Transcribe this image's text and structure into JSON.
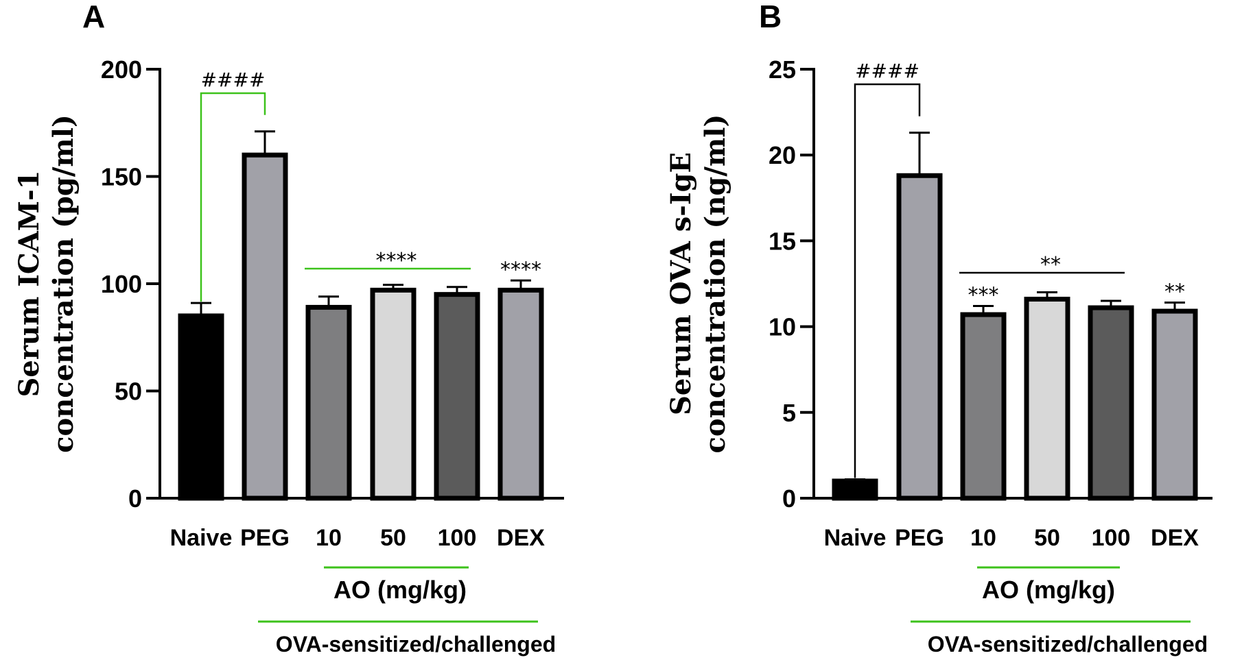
{
  "chart_data": [
    {
      "type": "bar",
      "panel": "A",
      "ylabel_line1": "Serum ICAM-1",
      "ylabel_line2": "concentration (pg/ml)",
      "categories": [
        "Naive",
        "PEG",
        "10",
        "50",
        "100",
        "DEX"
      ],
      "values": [
        85,
        160,
        89,
        97,
        95,
        97
      ],
      "errors": [
        6,
        11,
        5,
        2.5,
        3.5,
        4.5
      ],
      "colors": [
        "#000000",
        "#a1a1a8",
        "#7e7e80",
        "#d8d8d8",
        "#5b5b5b",
        "#a1a1a8"
      ],
      "ylim": [
        0,
        200
      ],
      "yticks": [
        "0",
        "50",
        "100",
        "150",
        "200"
      ],
      "bracket_label": "####",
      "group_sig_label": "****",
      "bar_sig_labels": [
        "",
        "",
        "",
        "",
        "",
        "****"
      ],
      "group_label_ao": "AO (mg/kg)",
      "group_label_ova": "OVA-sensitized/challenged"
    },
    {
      "type": "bar",
      "panel": "B",
      "ylabel_line1": "Serum OVA s-IgE",
      "ylabel_line2": "concentration (ng/ml)",
      "categories": [
        "Naive",
        "PEG",
        "10",
        "50",
        "100",
        "DEX"
      ],
      "values": [
        1,
        18.8,
        10.7,
        11.6,
        11.1,
        10.9
      ],
      "errors": [
        0.1,
        2.5,
        0.5,
        0.4,
        0.4,
        0.5
      ],
      "colors": [
        "#000000",
        "#a1a1a8",
        "#7e7e80",
        "#d8d8d8",
        "#5b5b5b",
        "#a1a1a8"
      ],
      "ylim": [
        0,
        25
      ],
      "yticks": [
        "0",
        "5",
        "10",
        "15",
        "20",
        "25"
      ],
      "bracket_label": "####",
      "group_sig_label": "**",
      "bar_sig_labels": [
        "",
        "",
        "***",
        "",
        "",
        "**"
      ],
      "group_label_ao": "AO (mg/kg)",
      "group_label_ova": "OVA-sensitized/challenged"
    }
  ],
  "colors": {
    "green_line": "#3cc21a",
    "axis": "#000000"
  }
}
